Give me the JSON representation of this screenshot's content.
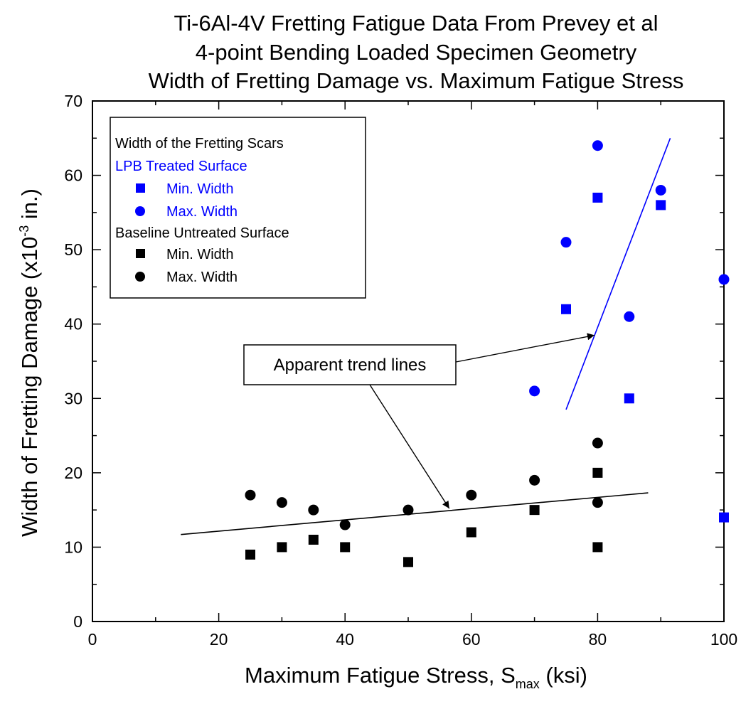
{
  "chart_data": {
    "type": "scatter",
    "title": [
      "Ti-6Al-4V Fretting Fatigue Data From Prevey et al",
      "4-point Bending Loaded Specimen Geometry",
      "Width of Fretting Damage vs. Maximum Fatigue Stress"
    ],
    "xlabel": {
      "main": "Maximum Fatigue Stress, S",
      "sub": "max",
      "unit": " (ksi)"
    },
    "ylabel": {
      "main": "Width of Fretting Damage (x10",
      "sup": "-3",
      "unit": " in.)"
    },
    "xlim": [
      0,
      100
    ],
    "ylim": [
      0,
      70
    ],
    "xticks": [
      0,
      20,
      40,
      60,
      80,
      100
    ],
    "yticks": [
      0,
      10,
      20,
      30,
      40,
      50,
      60,
      70
    ],
    "grid": false,
    "legend_position": "top-left",
    "legend": {
      "header": "Width of the Fretting Scars",
      "groups": [
        {
          "label": "LPB Treated Surface",
          "color": "#0000ff",
          "entries": [
            "Min. Width",
            "Max. Width"
          ]
        },
        {
          "label": "Baseline Untreated Surface",
          "color": "#000000",
          "entries": [
            "Min. Width",
            "Max. Width"
          ]
        }
      ]
    },
    "series": [
      {
        "group": "LPB Treated Surface",
        "name": "Min. Width",
        "marker": "square",
        "color": "#0000ff",
        "points": [
          [
            75,
            42
          ],
          [
            80,
            57
          ],
          [
            85,
            30
          ],
          [
            90,
            56
          ],
          [
            100,
            14
          ]
        ]
      },
      {
        "group": "LPB Treated Surface",
        "name": "Max. Width",
        "marker": "circle",
        "color": "#0000ff",
        "points": [
          [
            70,
            31
          ],
          [
            75,
            51
          ],
          [
            80,
            64
          ],
          [
            85,
            41
          ],
          [
            90,
            58
          ],
          [
            100,
            46
          ]
        ]
      },
      {
        "group": "Baseline Untreated Surface",
        "name": "Min. Width",
        "marker": "square",
        "color": "#000000",
        "points": [
          [
            25,
            9
          ],
          [
            30,
            10
          ],
          [
            35,
            11
          ],
          [
            40,
            10
          ],
          [
            50,
            8
          ],
          [
            60,
            12
          ],
          [
            70,
            15
          ],
          [
            80,
            20
          ],
          [
            80,
            10
          ]
        ]
      },
      {
        "group": "Baseline Untreated Surface",
        "name": "Max. Width",
        "marker": "circle",
        "color": "#000000",
        "points": [
          [
            25,
            17
          ],
          [
            30,
            16
          ],
          [
            35,
            15
          ],
          [
            40,
            13
          ],
          [
            50,
            15
          ],
          [
            60,
            17
          ],
          [
            70,
            19
          ],
          [
            80,
            24
          ],
          [
            80,
            16
          ]
        ]
      }
    ],
    "trend_lines": [
      {
        "color": "#000000",
        "from": [
          14,
          11.7
        ],
        "to": [
          88,
          17.3
        ]
      },
      {
        "color": "#0000ff",
        "from": [
          75,
          28.5
        ],
        "to": [
          91.5,
          65
        ]
      }
    ],
    "annotation": {
      "text": "Apparent trend lines",
      "arrows_to": [
        [
          56.5,
          15.2
        ],
        [
          79.5,
          38.5
        ]
      ]
    }
  }
}
